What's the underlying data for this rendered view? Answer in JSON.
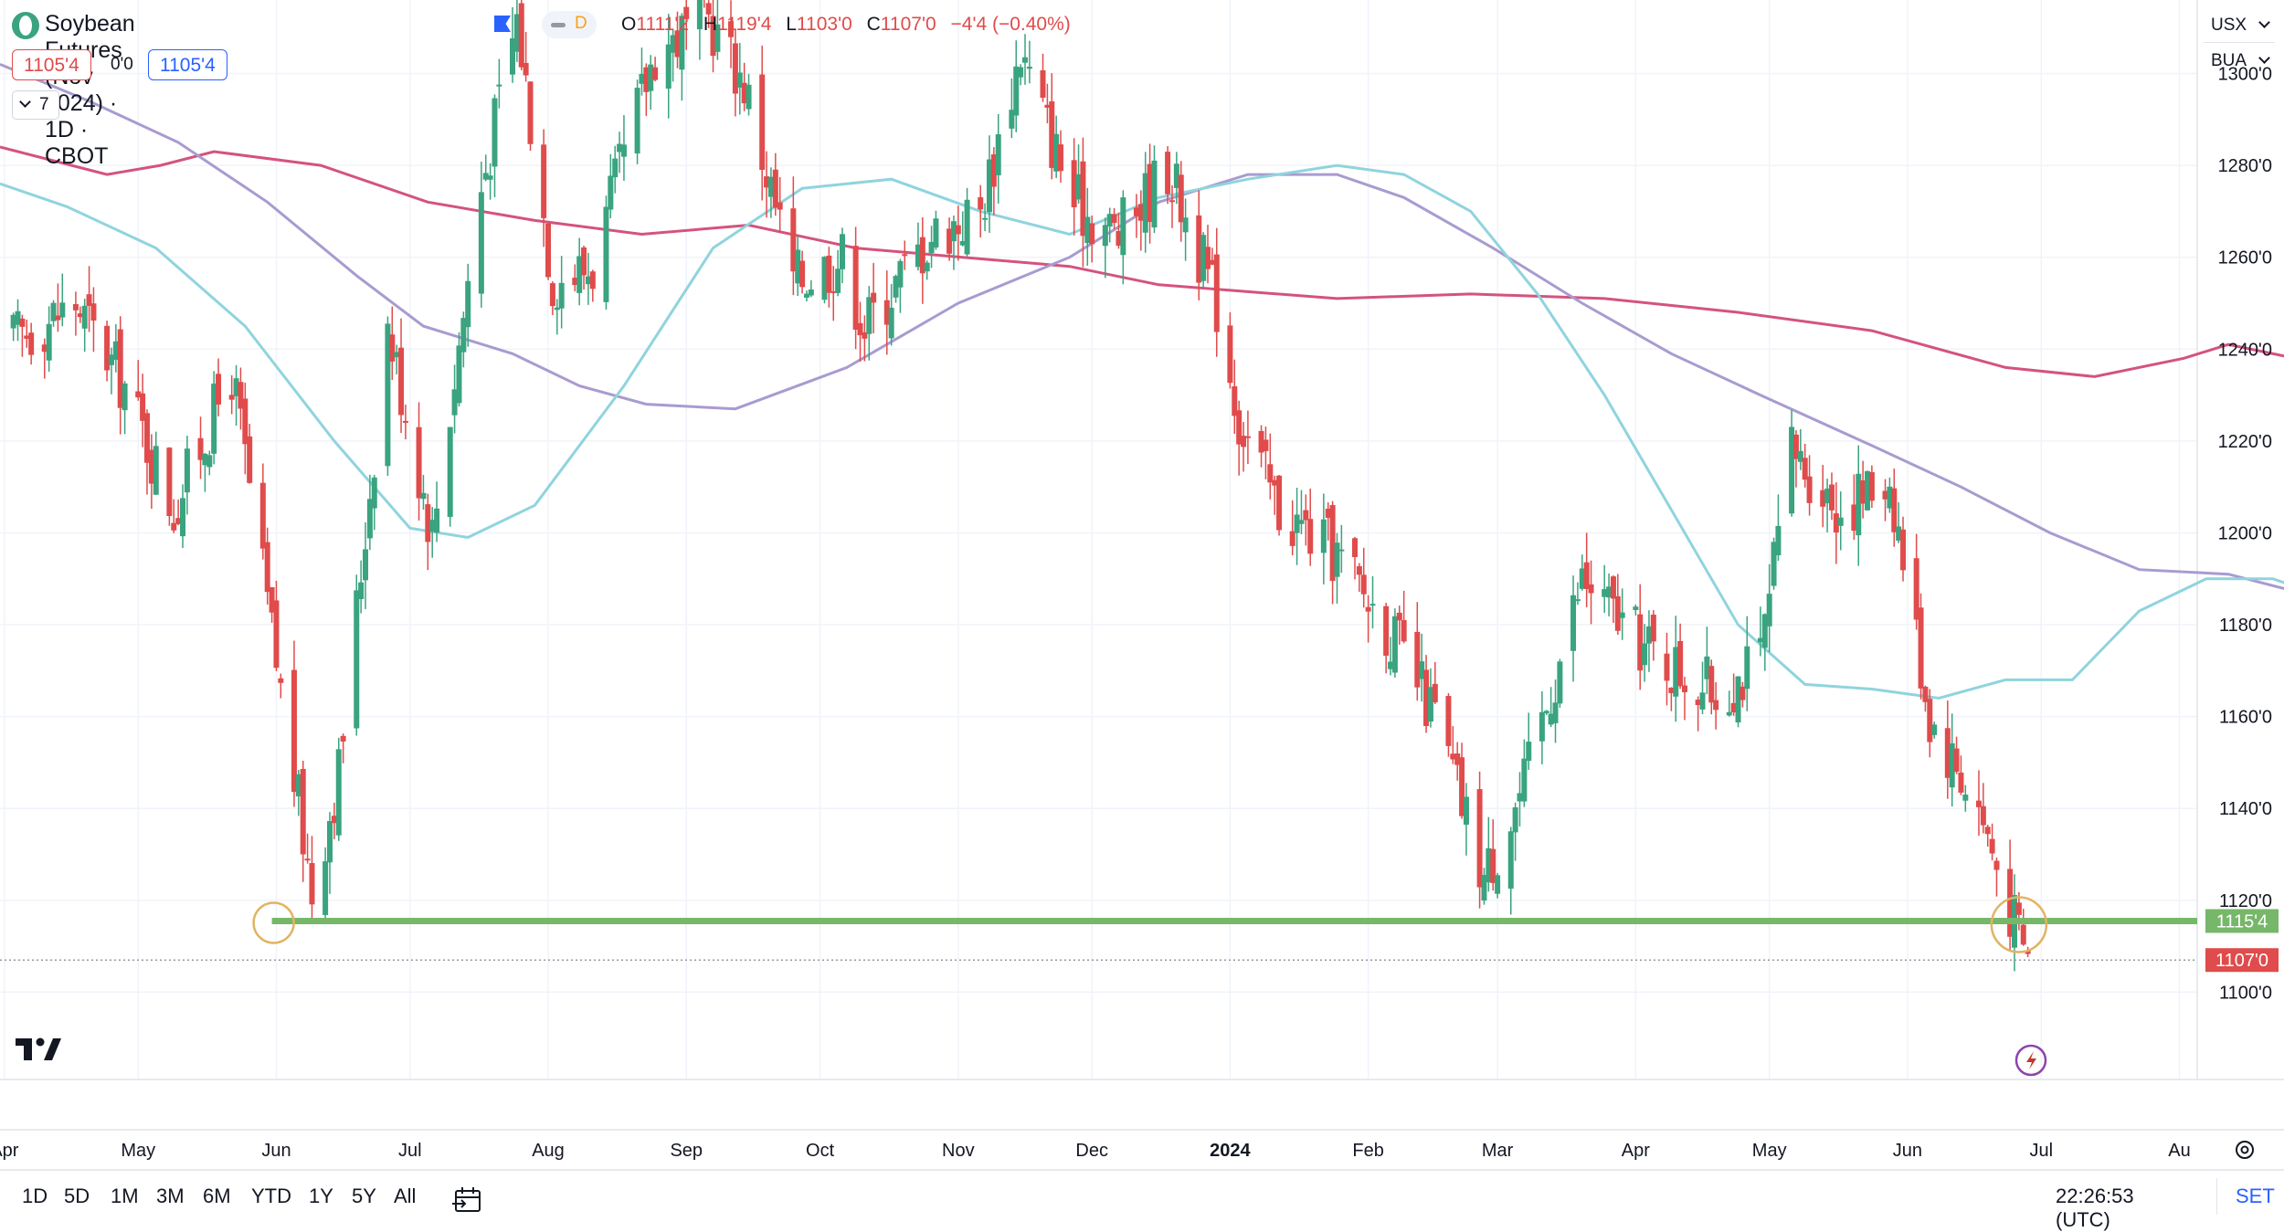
{
  "header": {
    "symbol_title": "Soybean Futures (Nov 2024) · 1D · CBOT",
    "interval_badge": "D",
    "ohlc": {
      "open_label": "O",
      "open": "1111'2",
      "high_label": "H",
      "high": "1119'4",
      "low_label": "L",
      "low": "1103'0",
      "close_label": "C",
      "close": "1107'0",
      "change": "−4'4 (−0.40%)"
    },
    "sell_price": "1105'4",
    "spread": "0'0",
    "buy_price": "1105'4",
    "indicators_count": "7",
    "colors": {
      "down": "#e04b4b",
      "up": "#3aa37f",
      "accent": "#2962ff"
    }
  },
  "right_panel": {
    "currency_button": "USX",
    "unit_button": "BUA",
    "set_button": "SET"
  },
  "bottom_bar": {
    "ranges": [
      "1D",
      "5D",
      "1M",
      "3M",
      "6M",
      "YTD",
      "1Y",
      "5Y",
      "All"
    ],
    "clock": "22:26:53 (UTC)"
  },
  "annotations": {
    "support_line_value": 1115.5,
    "support_line_label": "1115'4",
    "support_line_color": "#76b76a",
    "current_price_label": "1107'0",
    "current_price_value": 1107.0,
    "current_price_color": "#e04b4b",
    "circle_color": "#e1b462"
  },
  "chart_data": {
    "type": "candlestick",
    "symbol": "Soybean Futures (Nov 2024)",
    "y_ticks": [
      "1100'0",
      "1120'0",
      "1140'0",
      "1160'0",
      "1180'0",
      "1200'0",
      "1220'0",
      "1240'0",
      "1260'0",
      "1280'0",
      "1300'0"
    ],
    "y_tick_values": [
      1100,
      1120,
      1140,
      1160,
      1180,
      1200,
      1220,
      1240,
      1260,
      1280,
      1300
    ],
    "ylim": [
      1081,
      1316
    ],
    "x_ticks": [
      "Apr",
      "May",
      "Jun",
      "Jul",
      "Aug",
      "Sep",
      "Oct",
      "Nov",
      "Dec",
      "2024",
      "Feb",
      "Mar",
      "Apr",
      "May",
      "Jun",
      "Jul",
      "Au"
    ],
    "x_tick_dates": [
      "2023-04-01",
      "2023-05-01",
      "2023-06-01",
      "2023-07-01",
      "2023-08-01",
      "2023-09-01",
      "2023-10-01",
      "2023-11-01",
      "2023-12-01",
      "2024-01-01",
      "2024-02-01",
      "2024-03-01",
      "2024-04-01",
      "2024-05-01",
      "2024-06-01",
      "2024-07-01",
      "2024-08-01"
    ],
    "x_range": [
      "2023-03-31",
      "2024-08-05"
    ],
    "close_series": [
      {
        "date": "2023-04-03",
        "close": 1242
      },
      {
        "date": "2023-04-17",
        "close": 1250
      },
      {
        "date": "2023-04-28",
        "close": 1232
      },
      {
        "date": "2023-05-09",
        "close": 1205
      },
      {
        "date": "2023-05-22",
        "close": 1235
      },
      {
        "date": "2023-05-31",
        "close": 1178
      },
      {
        "date": "2023-06-09",
        "close": 1122
      },
      {
        "date": "2023-06-15",
        "close": 1148
      },
      {
        "date": "2023-06-26",
        "close": 1245
      },
      {
        "date": "2023-07-06",
        "close": 1200
      },
      {
        "date": "2023-07-17",
        "close": 1275
      },
      {
        "date": "2023-07-25",
        "close": 1312
      },
      {
        "date": "2023-08-02",
        "close": 1255
      },
      {
        "date": "2023-08-11",
        "close": 1258
      },
      {
        "date": "2023-08-25",
        "close": 1305
      },
      {
        "date": "2023-09-06",
        "close": 1312
      },
      {
        "date": "2023-09-14",
        "close": 1298
      },
      {
        "date": "2023-09-25",
        "close": 1255
      },
      {
        "date": "2023-10-06",
        "close": 1260
      },
      {
        "date": "2023-10-11",
        "close": 1245
      },
      {
        "date": "2023-10-26",
        "close": 1265
      },
      {
        "date": "2023-11-06",
        "close": 1270
      },
      {
        "date": "2023-11-15",
        "close": 1305
      },
      {
        "date": "2023-11-27",
        "close": 1272
      },
      {
        "date": "2023-12-07",
        "close": 1265
      },
      {
        "date": "2023-12-18",
        "close": 1280
      },
      {
        "date": "2023-12-29",
        "close": 1250
      },
      {
        "date": "2024-01-03",
        "close": 1225
      },
      {
        "date": "2024-01-12",
        "close": 1205
      },
      {
        "date": "2024-01-25",
        "close": 1195
      },
      {
        "date": "2024-02-05",
        "close": 1180
      },
      {
        "date": "2024-02-16",
        "close": 1160
      },
      {
        "date": "2024-02-27",
        "close": 1125
      },
      {
        "date": "2024-03-07",
        "close": 1145
      },
      {
        "date": "2024-03-20",
        "close": 1190
      },
      {
        "date": "2024-04-03",
        "close": 1175
      },
      {
        "date": "2024-04-19",
        "close": 1165
      },
      {
        "date": "2024-04-29",
        "close": 1172
      },
      {
        "date": "2024-05-06",
        "close": 1218
      },
      {
        "date": "2024-05-17",
        "close": 1205
      },
      {
        "date": "2024-05-28",
        "close": 1212
      },
      {
        "date": "2024-06-06",
        "close": 1160
      },
      {
        "date": "2024-06-17",
        "close": 1140
      },
      {
        "date": "2024-06-25",
        "close": 1115
      },
      {
        "date": "2024-06-28",
        "close": 1107
      }
    ],
    "series": [
      {
        "name": "",
        "color": "#d4537e",
        "values": [
          [
            0,
            1284
          ],
          [
            12,
            1281
          ],
          [
            24,
            1278
          ],
          [
            36,
            1280
          ],
          [
            48,
            1283
          ],
          [
            72,
            1280
          ],
          [
            96,
            1272
          ],
          [
            120,
            1268
          ],
          [
            144,
            1265
          ],
          [
            168,
            1267
          ],
          [
            192,
            1262
          ],
          [
            216,
            1260
          ],
          [
            240,
            1258
          ],
          [
            260,
            1254
          ],
          [
            300,
            1251
          ],
          [
            330,
            1252
          ],
          [
            360,
            1251
          ],
          [
            390,
            1248
          ],
          [
            420,
            1244
          ],
          [
            450,
            1236
          ],
          [
            470,
            1234
          ],
          [
            490,
            1238
          ],
          [
            500,
            1241
          ],
          [
            520,
            1237
          ],
          [
            540,
            1236
          ],
          [
            560,
            1231
          ],
          [
            580,
            1226
          ]
        ]
      },
      {
        "name": "",
        "color": "#a99bd0",
        "values": [
          [
            0,
            1302
          ],
          [
            20,
            1294
          ],
          [
            40,
            1285
          ],
          [
            60,
            1272
          ],
          [
            80,
            1256
          ],
          [
            95,
            1245
          ],
          [
            115,
            1239
          ],
          [
            130,
            1232
          ],
          [
            145,
            1228
          ],
          [
            165,
            1227
          ],
          [
            190,
            1236
          ],
          [
            215,
            1250
          ],
          [
            240,
            1260
          ],
          [
            260,
            1272
          ],
          [
            280,
            1278
          ],
          [
            300,
            1278
          ],
          [
            315,
            1273
          ],
          [
            335,
            1262
          ],
          [
            355,
            1250
          ],
          [
            375,
            1239
          ],
          [
            395,
            1230
          ],
          [
            420,
            1219
          ],
          [
            440,
            1210
          ],
          [
            460,
            1200
          ],
          [
            480,
            1192
          ],
          [
            500,
            1191
          ],
          [
            520,
            1186
          ],
          [
            535,
            1180
          ],
          [
            555,
            1174
          ]
        ]
      },
      {
        "name": "",
        "color": "#8fd4de",
        "values": [
          [
            0,
            1276
          ],
          [
            15,
            1271
          ],
          [
            35,
            1262
          ],
          [
            55,
            1245
          ],
          [
            75,
            1220
          ],
          [
            92,
            1201
          ],
          [
            105,
            1199
          ],
          [
            120,
            1206
          ],
          [
            140,
            1232
          ],
          [
            160,
            1262
          ],
          [
            180,
            1275
          ],
          [
            200,
            1277
          ],
          [
            220,
            1270
          ],
          [
            240,
            1265
          ],
          [
            260,
            1273
          ],
          [
            280,
            1277
          ],
          [
            300,
            1280
          ],
          [
            315,
            1278
          ],
          [
            330,
            1270
          ],
          [
            345,
            1252
          ],
          [
            360,
            1230
          ],
          [
            375,
            1205
          ],
          [
            390,
            1180
          ],
          [
            405,
            1167
          ],
          [
            420,
            1166
          ],
          [
            435,
            1164
          ],
          [
            450,
            1168
          ],
          [
            465,
            1168
          ],
          [
            480,
            1183
          ],
          [
            495,
            1190
          ],
          [
            510,
            1190
          ],
          [
            525,
            1185
          ],
          [
            540,
            1178
          ]
        ]
      }
    ],
    "grid": true,
    "legend_position": "none"
  }
}
